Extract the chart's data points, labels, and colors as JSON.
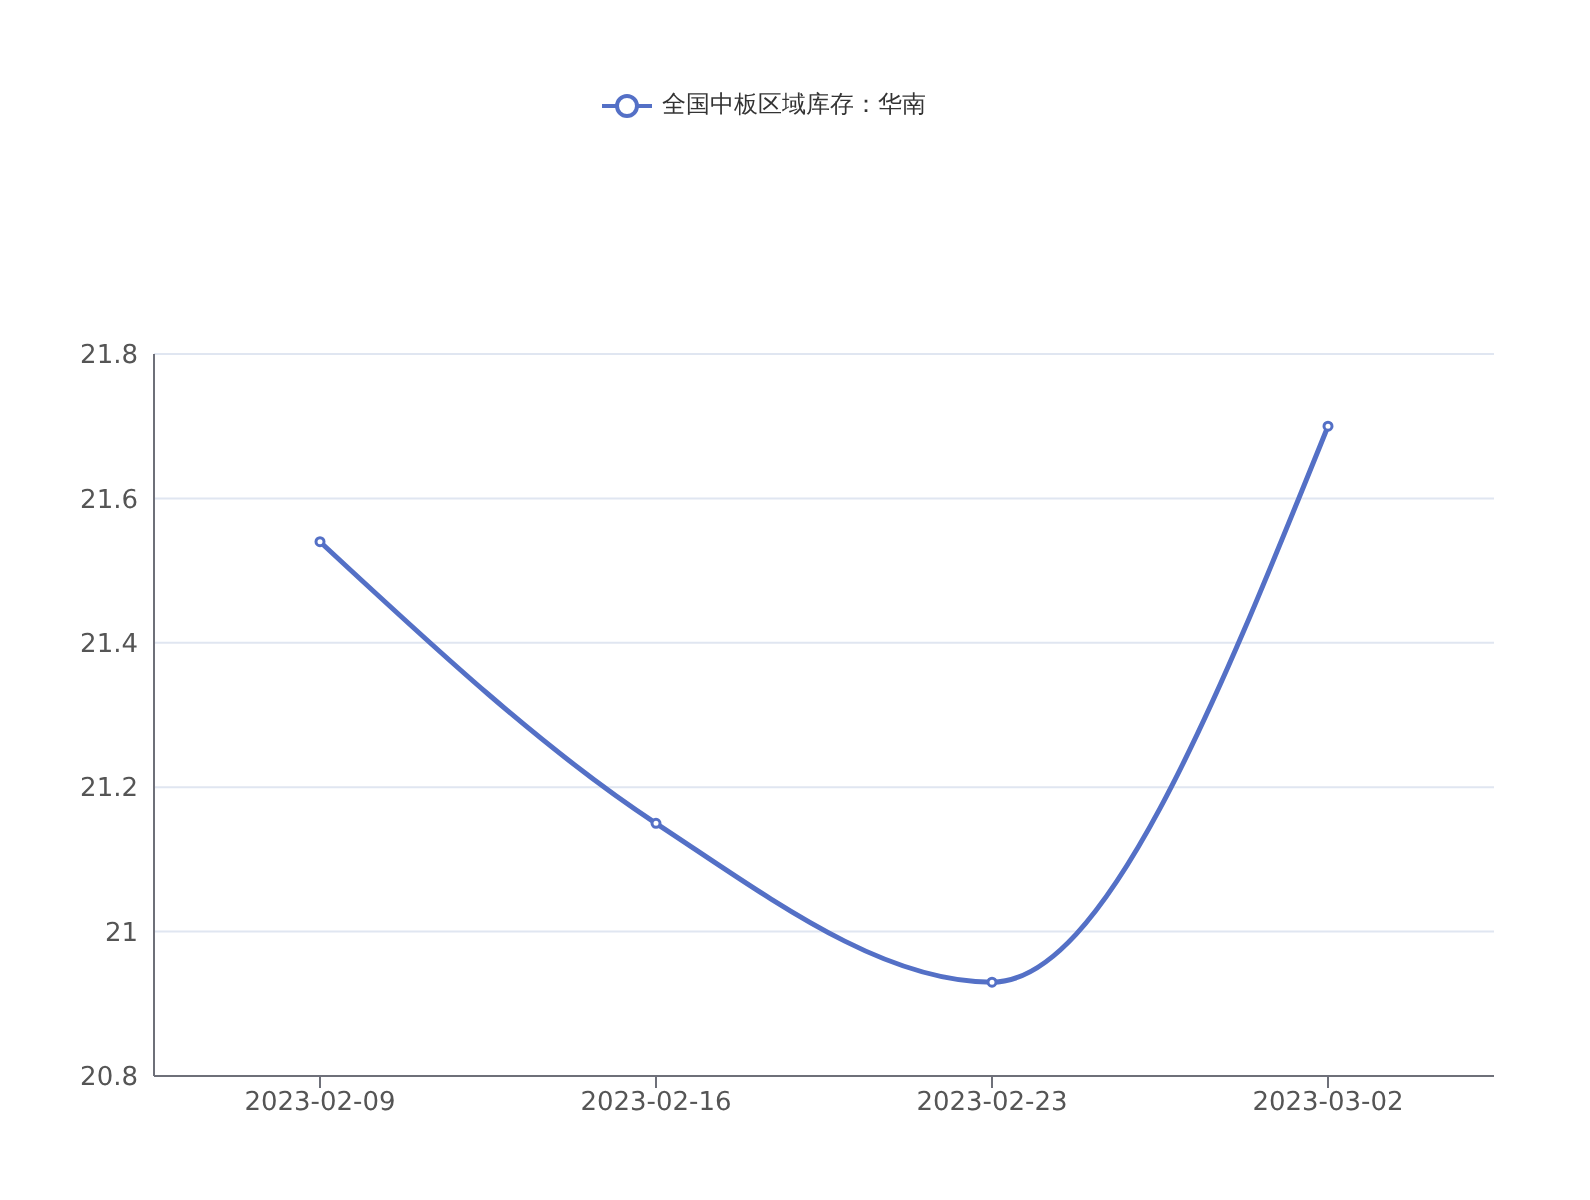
{
  "chart_data": {
    "type": "line",
    "categories": [
      "2023-02-09",
      "2023-02-16",
      "2023-02-23",
      "2023-03-02"
    ],
    "series": [
      {
        "name": "全国中板区域库存：华南",
        "color": "#5470c6",
        "values": [
          21.54,
          21.15,
          20.93,
          21.7
        ]
      }
    ],
    "ylim": [
      20.8,
      21.8
    ],
    "yticks": [
      20.8,
      21,
      21.2,
      21.4,
      21.6,
      21.8
    ],
    "grid": "y",
    "legend": "top",
    "marker": "circle",
    "line_style": "solid"
  }
}
